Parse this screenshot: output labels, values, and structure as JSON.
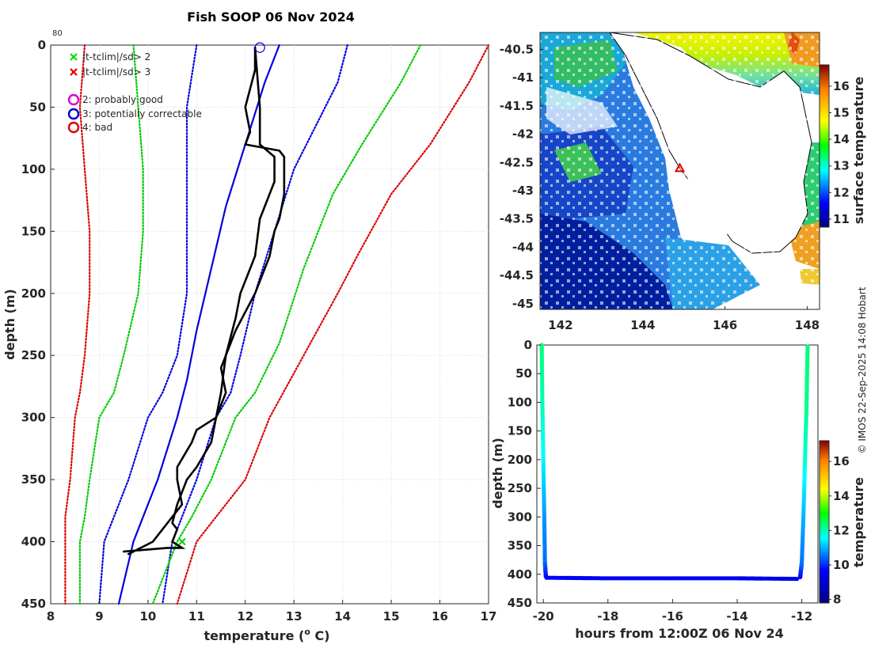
{
  "figure": {
    "title": "Fish SOOP 06 Nov 2024",
    "copyright": "© IMOS 22-Sep-2025 14:08 Hobart",
    "corner_label": "80"
  },
  "colors": {
    "profile": "#000000",
    "clim_mean": "#0000dd",
    "sd2": "#00cc00",
    "sd3": "#dd0000",
    "sst_ocean": "#1f6fd6",
    "land": "#ffffff"
  },
  "legend": {
    "items": [
      {
        "marker": "x",
        "color": "#00dd00",
        "label": "|t-tclim|/sd> 2"
      },
      {
        "marker": "x",
        "color": "#dd0000",
        "label": "|t-tclim|/sd> 3"
      },
      {
        "marker": "o",
        "color": "#dd00dd",
        "label": "2: probably good"
      },
      {
        "marker": "o",
        "color": "#0000dd",
        "label": "3: potentially correctable"
      },
      {
        "marker": "o",
        "color": "#dd0000",
        "label": "4: bad"
      }
    ]
  },
  "chart_data": [
    {
      "type": "line",
      "title": "Fish SOOP 06 Nov 2024",
      "xlabel": "temperature (° C)",
      "xlabel_parts": {
        "main": "temperature (",
        "sup": "o",
        "unit": " C)"
      },
      "ylabel": "depth (m)",
      "xlim": [
        8,
        17
      ],
      "ylim": [
        0,
        450
      ],
      "y_reversed": true,
      "grid": true,
      "xticks": [
        8,
        9,
        10,
        11,
        12,
        13,
        14,
        15,
        16,
        17
      ],
      "yticks": [
        0,
        50,
        100,
        150,
        200,
        250,
        300,
        350,
        400,
        450
      ],
      "series": [
        {
          "name": "clim_minus3sd",
          "style": "dotted",
          "color": "#dd0000",
          "x": [
            8.7,
            8.6,
            8.7,
            8.8,
            8.8,
            8.7,
            8.6,
            8.5,
            8.4,
            8.3,
            8.3,
            8.3
          ],
          "y": [
            0,
            50,
            100,
            150,
            200,
            250,
            280,
            300,
            350,
            380,
            400,
            450
          ]
        },
        {
          "name": "clim_minus2sd",
          "style": "dotted",
          "color": "#00cc00",
          "x": [
            9.7,
            9.8,
            9.9,
            9.9,
            9.8,
            9.5,
            9.3,
            9.0,
            8.8,
            8.7,
            8.6,
            8.6
          ],
          "y": [
            0,
            50,
            100,
            150,
            200,
            250,
            280,
            300,
            350,
            380,
            400,
            450
          ]
        },
        {
          "name": "clim_minus1sd",
          "style": "dotted",
          "color": "#0000dd",
          "x": [
            11.0,
            10.8,
            10.8,
            10.8,
            10.8,
            10.6,
            10.3,
            10.0,
            9.6,
            9.3,
            9.1,
            9.0
          ],
          "y": [
            0,
            50,
            100,
            150,
            200,
            250,
            280,
            300,
            350,
            380,
            400,
            450
          ]
        },
        {
          "name": "clim_mean",
          "style": "solid",
          "color": "#0000dd",
          "x": [
            12.7,
            12.4,
            12.0,
            11.6,
            11.3,
            11.0,
            10.8,
            10.6,
            10.2,
            9.9,
            9.7,
            9.4
          ],
          "y": [
            0,
            30,
            80,
            130,
            180,
            230,
            270,
            300,
            350,
            380,
            400,
            450
          ]
        },
        {
          "name": "clim_plus1sd",
          "style": "dotted",
          "color": "#0000dd",
          "x": [
            14.1,
            13.9,
            13.0,
            12.6,
            12.2,
            11.9,
            11.7,
            11.4,
            11.0,
            10.7,
            10.5,
            10.3
          ],
          "y": [
            0,
            30,
            100,
            150,
            200,
            250,
            280,
            300,
            350,
            380,
            400,
            450
          ]
        },
        {
          "name": "clim_plus2sd",
          "style": "dotted",
          "color": "#00cc00",
          "x": [
            15.6,
            15.2,
            14.4,
            13.8,
            13.2,
            12.7,
            12.2,
            11.8,
            11.3,
            10.9,
            10.6,
            10.1
          ],
          "y": [
            0,
            30,
            80,
            120,
            180,
            240,
            280,
            300,
            350,
            380,
            400,
            450
          ]
        },
        {
          "name": "clim_plus3sd",
          "style": "dotted",
          "color": "#dd0000",
          "x": [
            17.0,
            16.6,
            15.8,
            15.0,
            14.3,
            13.9,
            13.2,
            12.5,
            12.0,
            11.4,
            11.0,
            10.6
          ],
          "y": [
            0,
            30,
            80,
            120,
            170,
            200,
            250,
            300,
            350,
            380,
            400,
            450
          ]
        },
        {
          "name": "profile_down",
          "style": "solid",
          "color": "#000000",
          "x": [
            12.2,
            12.2,
            12.0,
            12.1,
            12.0,
            12.7,
            12.8,
            12.8,
            12.7,
            12.6,
            12.5,
            12.2,
            11.8,
            11.5,
            11.6,
            11.4,
            11.3,
            11.0,
            10.8,
            10.6,
            10.5,
            10.6,
            10.5,
            10.7,
            10.4,
            9.5
          ],
          "y": [
            2,
            20,
            50,
            70,
            80,
            85,
            90,
            120,
            140,
            150,
            170,
            200,
            230,
            260,
            280,
            300,
            320,
            340,
            350,
            370,
            385,
            390,
            400,
            405,
            405,
            408
          ]
        },
        {
          "name": "profile_up",
          "style": "solid",
          "color": "#000000",
          "x": [
            9.6,
            10.1,
            10.5,
            10.7,
            10.6,
            10.6,
            10.9,
            11.0,
            11.4,
            11.5,
            11.6,
            11.8,
            11.9,
            12.2,
            12.3,
            12.6,
            12.6,
            12.3,
            12.3,
            12.2
          ],
          "y": [
            410,
            400,
            380,
            370,
            350,
            340,
            320,
            310,
            300,
            280,
            250,
            220,
            200,
            170,
            140,
            110,
            90,
            80,
            50,
            2
          ]
        }
      ],
      "markers": [
        {
          "type": "circle",
          "color": "#0000dd",
          "x": 12.3,
          "y": 2
        },
        {
          "type": "x",
          "color": "#00cc00",
          "x": 10.7,
          "y": 400
        }
      ]
    },
    {
      "type": "heatmap",
      "title": "",
      "xlabel": "",
      "ylabel": "",
      "xlim": [
        141.5,
        148.3
      ],
      "ylim": [
        -45.1,
        -40.2
      ],
      "xticks": [
        142,
        144,
        146,
        148
      ],
      "xtick_labels": [
        "142",
        "144",
        "146",
        "148"
      ],
      "yticks": [
        -40.5,
        -41,
        -41.5,
        -42,
        -42.5,
        -43,
        -43.5,
        -44,
        -44.5,
        -45
      ],
      "ytick_labels": [
        "-40.5",
        "-41",
        "-41.5",
        "-42",
        "-42.5",
        "-43",
        "-43.5",
        "-44",
        "-44.5",
        "-45"
      ],
      "colorbar": {
        "label": "surface temperature",
        "range": [
          10.7,
          16.8
        ],
        "ticks": [
          11,
          12,
          13,
          14,
          15,
          16
        ]
      },
      "marker": {
        "type": "triangle",
        "color": "#dd0000",
        "lon": 144.9,
        "lat": -42.6
      }
    },
    {
      "type": "scatter",
      "title": "",
      "xlabel": "hours from 12:00Z 06 Nov 24",
      "ylabel": "depth (m)",
      "xlim": [
        -20.2,
        -11.5
      ],
      "ylim": [
        0,
        450
      ],
      "y_reversed": true,
      "xticks": [
        -20,
        -18,
        -16,
        -14,
        -12
      ],
      "yticks": [
        0,
        50,
        100,
        150,
        200,
        250,
        300,
        350,
        400,
        450
      ],
      "colorbar": {
        "label": "temperature",
        "range": [
          7.8,
          17.2
        ],
        "ticks": [
          8,
          10,
          12,
          14,
          16
        ]
      },
      "series": [
        {
          "name": "downcast",
          "hours": [
            -20.05,
            -20.03,
            -20.0,
            -19.97,
            -19.95,
            -19.92
          ],
          "depth": [
            0,
            100,
            200,
            300,
            380,
            405
          ],
          "temperature": [
            12.3,
            12.0,
            11.5,
            10.8,
            10.5,
            9.8
          ]
        },
        {
          "name": "bottom",
          "hours": [
            -19.9,
            -18,
            -16,
            -14,
            -12.1
          ],
          "depth": [
            406,
            407,
            407,
            407,
            408
          ],
          "temperature": [
            9.6,
            9.4,
            9.5,
            9.4,
            9.3
          ]
        },
        {
          "name": "upcast",
          "hours": [
            -12.05,
            -12.0,
            -11.95,
            -11.9,
            -11.85,
            -11.82
          ],
          "depth": [
            405,
            380,
            300,
            200,
            100,
            0
          ],
          "temperature": [
            9.6,
            10.5,
            11.0,
            11.8,
            12.2,
            12.3
          ]
        }
      ]
    }
  ]
}
